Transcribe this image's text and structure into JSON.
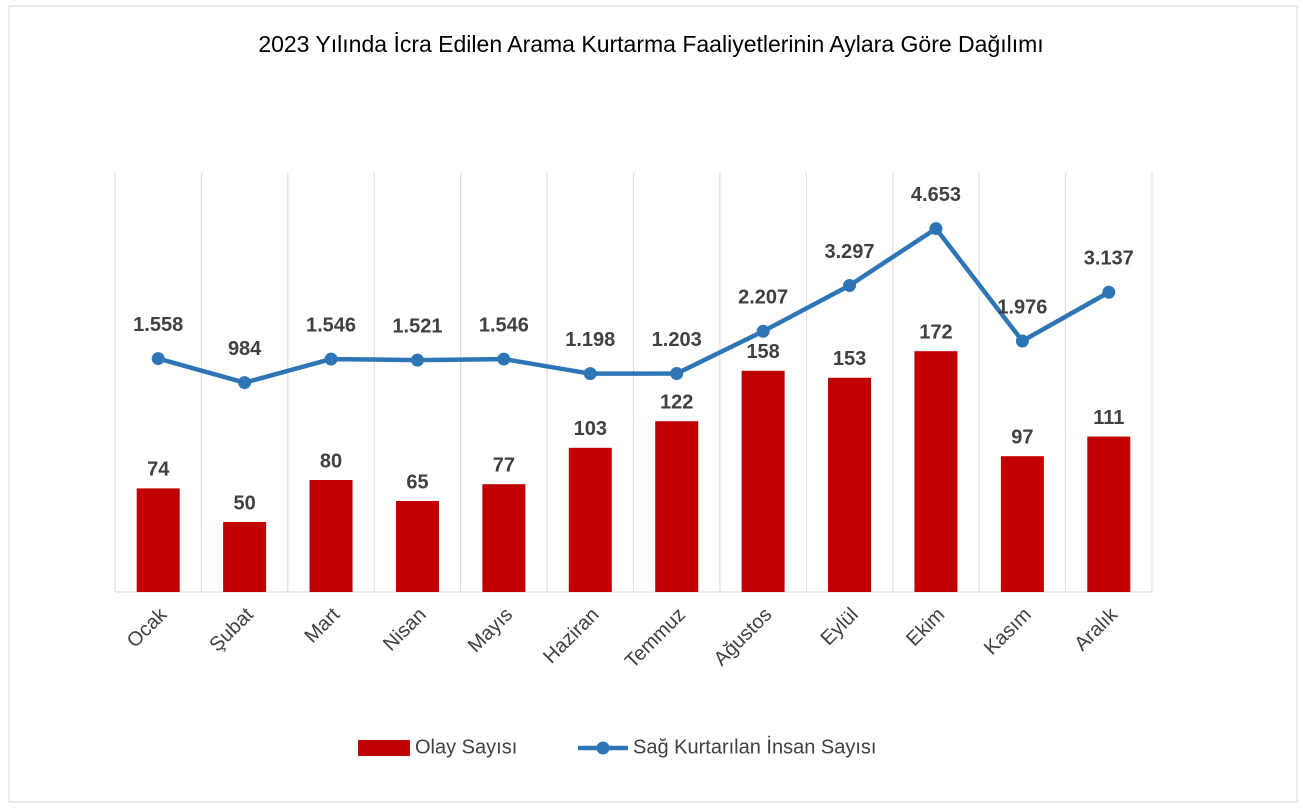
{
  "chart_data": {
    "type": "bar",
    "title": "2023 Yılında İcra Edilen Arama Kurtarma Faaliyetlerinin Aylara Göre Dağılımı",
    "categories": [
      "Ocak",
      "Şubat",
      "Mart",
      "Nisan",
      "Mayıs",
      "Haziran",
      "Temmuz",
      "Ağustos",
      "Eylül",
      "Ekim",
      "Kasım",
      "Aralık"
    ],
    "series": [
      {
        "name": "Olay Sayısı",
        "type": "bar",
        "color": "#c00000",
        "values": [
          74,
          50,
          80,
          65,
          77,
          103,
          122,
          158,
          153,
          172,
          97,
          111
        ]
      },
      {
        "name": "Sağ Kurtarılan İnsan Sayısı",
        "type": "line",
        "color": "#2e75b6",
        "axis": "y2",
        "values": [
          1558,
          984,
          1546,
          1521,
          1546,
          1198,
          1203,
          2207,
          3297,
          4653,
          1976,
          3137
        ],
        "value_labels": [
          "1.558",
          "984",
          "1.546",
          "1.521",
          "1.546",
          "1.198",
          "1.203",
          "2.207",
          "3.297",
          "4.653",
          "1.976",
          "3.137"
        ]
      }
    ],
    "ylim": [
      0,
      300
    ],
    "y2lim": [
      -4000,
      6000
    ],
    "grid": true,
    "legend": "bottom"
  }
}
